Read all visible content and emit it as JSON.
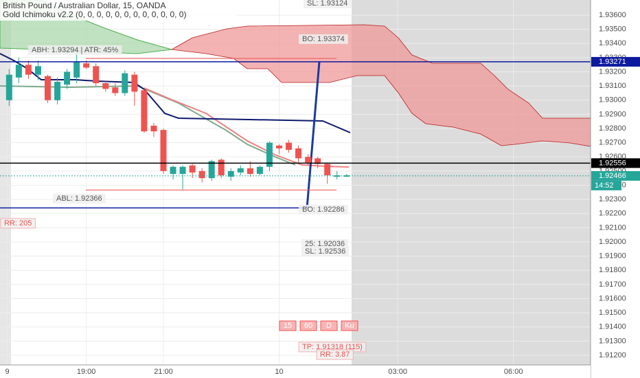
{
  "chart_data": {
    "type": "candlestick",
    "title": "British Pound / Australian Dollar, 15, OANDA",
    "subtitle": "Gold Ichimoku v2.2 (0, 0, 0, 0, 0, 0, 0, 0, 0, 0, 0, 0)",
    "open": [
      1.93,
      1.9316,
      1.9325,
      1.9318,
      1.9317,
      1.93,
      1.9311,
      1.9316,
      1.9326,
      1.9324,
      1.9312,
      1.9309,
      1.9305,
      1.9318,
      1.9307,
      1.9282,
      1.9279,
      1.9248,
      1.9248,
      1.9254,
      1.925,
      1.9245,
      1.9258,
      1.9246,
      1.9249,
      1.9252,
      1.9248,
      1.9253,
      1.9268,
      1.927,
      1.9266,
      1.926,
      1.9259,
      1.9255,
      1.9246,
      1.9246
    ],
    "high": [
      1.9322,
      1.933,
      1.9328,
      1.9328,
      1.9318,
      1.9316,
      1.9322,
      1.9334,
      1.9328,
      1.9326,
      1.9314,
      1.9312,
      1.9321,
      1.932,
      1.9308,
      1.9284,
      1.928,
      1.9254,
      1.9254,
      1.9255,
      1.9252,
      1.9258,
      1.9259,
      1.9252,
      1.9254,
      1.9257,
      1.9254,
      1.9271,
      1.9269,
      1.9272,
      1.9268,
      1.9262,
      1.926,
      1.9256,
      1.925,
      1.9248
    ],
    "low": [
      1.9296,
      1.9312,
      1.9315,
      1.9314,
      1.9298,
      1.9297,
      1.9308,
      1.9312,
      1.9322,
      1.931,
      1.9306,
      1.9303,
      1.9303,
      1.9296,
      1.9277,
      1.9274,
      1.9248,
      1.9244,
      1.9237,
      1.9245,
      1.9242,
      1.9243,
      1.9245,
      1.9243,
      1.9247,
      1.9246,
      1.9247,
      1.925,
      1.9262,
      1.9263,
      1.9256,
      1.9254,
      1.9252,
      1.9241,
      1.9244,
      1.9246
    ],
    "close": [
      1.9318,
      1.9325,
      1.9318,
      1.9324,
      1.93,
      1.9313,
      1.932,
      1.9327,
      1.9323,
      1.9312,
      1.9308,
      1.9305,
      1.9319,
      1.9306,
      1.9278,
      1.9278,
      1.925,
      1.9253,
      1.9253,
      1.9249,
      1.9245,
      1.9257,
      1.9247,
      1.925,
      1.9252,
      1.9248,
      1.9253,
      1.927,
      1.9266,
      1.9265,
      1.9259,
      1.9256,
      1.9255,
      1.9247,
      1.9247,
      1.9247
    ],
    "up_color": "#26a69a",
    "down_color": "#ef5350",
    "xlim": [
      -0.95,
      60.3
    ],
    "xticks": [
      {
        "value": -0.2,
        "label": "9"
      },
      {
        "value": 8,
        "label": "19:00"
      },
      {
        "value": 16,
        "label": "21:00"
      },
      {
        "value": 28,
        "label": "10"
      },
      {
        "value": 40.3,
        "label": "03:00"
      },
      {
        "value": 52.3,
        "label": "06:00"
      }
    ],
    "ylim": [
      1.91132,
      1.93707
    ],
    "yticks": [
      {
        "value": 1.912,
        "label": "1.91200"
      },
      {
        "value": 1.913,
        "label": "1.91300"
      },
      {
        "value": 1.914,
        "label": "1.91400"
      },
      {
        "value": 1.915,
        "label": "1.91500"
      },
      {
        "value": 1.916,
        "label": "1.91600"
      },
      {
        "value": 1.917,
        "label": "1.91700"
      },
      {
        "value": 1.918,
        "label": "1.91800"
      },
      {
        "value": 1.919,
        "label": "1.91900"
      },
      {
        "value": 1.92,
        "label": "1.92000"
      },
      {
        "value": 1.921,
        "label": "1.92100"
      },
      {
        "value": 1.922,
        "label": "1.92200"
      },
      {
        "value": 1.923,
        "label": "1.92300"
      },
      {
        "value": 1.924,
        "label": "1.92400"
      },
      {
        "value": 1.925,
        "label": "1.92500"
      },
      {
        "value": 1.926,
        "label": "1.92600"
      },
      {
        "value": 1.927,
        "label": "1.92700"
      },
      {
        "value": 1.928,
        "label": "1.92800"
      },
      {
        "value": 1.929,
        "label": "1.92900"
      },
      {
        "value": 1.93,
        "label": "1.93000"
      },
      {
        "value": 1.931,
        "label": "1.93100"
      },
      {
        "value": 1.932,
        "label": "1.93200"
      },
      {
        "value": 1.933,
        "label": "1.93300"
      },
      {
        "value": 1.934,
        "label": "1.93400"
      },
      {
        "value": 1.935,
        "label": "1.93500"
      },
      {
        "value": 1.936,
        "label": "1.93600"
      }
    ],
    "grid": true,
    "levels": [
      {
        "value": 1.93294,
        "color": "#ef5350"
      },
      {
        "value": 1.92366,
        "color": "#ef5350"
      },
      {
        "value": 1.9224,
        "color": "#0d1a9e"
      }
    ],
    "price_lines": [
      {
        "value": 1.93271,
        "color": "#0d1a9e"
      },
      {
        "value": 1.92556,
        "color": "#000000"
      },
      {
        "value": 1.92466,
        "color": "#26a69a",
        "countdown": "14:52"
      }
    ],
    "annotations": [
      "SL: 1.93124",
      "BO: 1.93374",
      "ABH: 1.93294 | ATR: 45%",
      "ABL: 1.92366",
      "BO: 1.92286",
      "25: 1.92036",
      "SL: 1.92536",
      "RR: 205",
      "TP: 1.91318 (115)",
      "RR: 3.87"
    ],
    "buttons": [
      "15",
      "60",
      "D",
      "Ku"
    ]
  }
}
